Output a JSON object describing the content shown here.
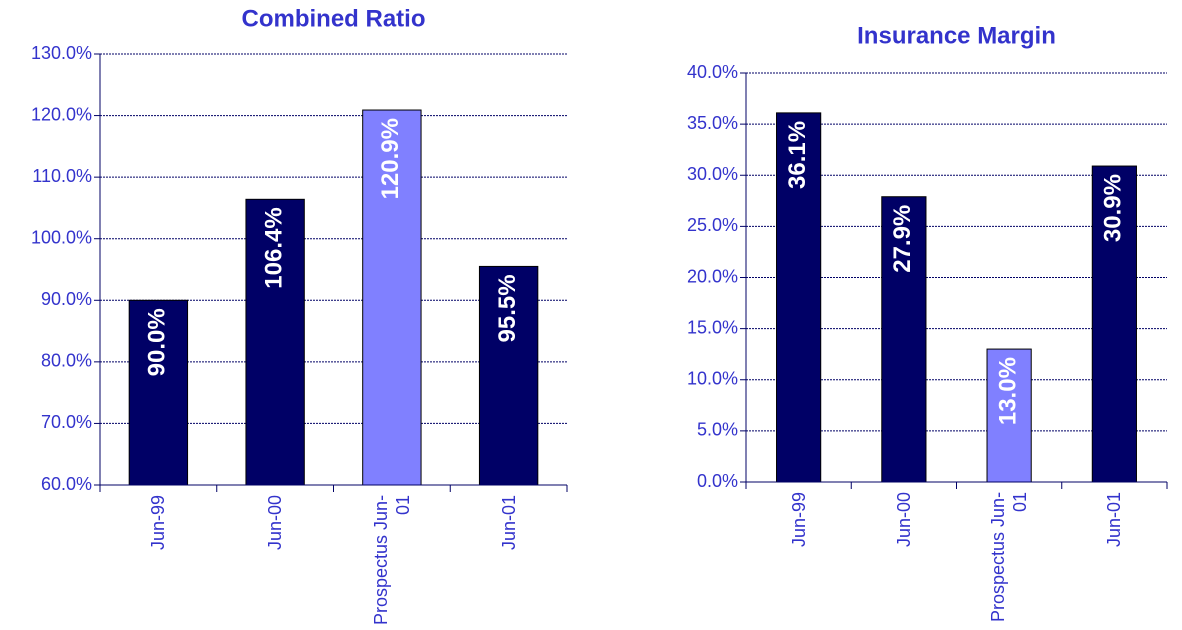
{
  "chart_data": [
    {
      "type": "bar",
      "title": "Combined Ratio",
      "categories": [
        "Jun-99",
        "Jun-00",
        "Prospectus Jun-01",
        "Jun-01"
      ],
      "values": [
        90.0,
        106.4,
        120.9,
        95.5
      ],
      "value_labels": [
        "90.0%",
        "106.4%",
        "120.9%",
        "95.5%"
      ],
      "colors": [
        "#000066",
        "#000066",
        "#8080ff",
        "#000066"
      ],
      "ylim": [
        60,
        130
      ],
      "yticks": [
        {
          "value": 60,
          "label": "60.0%"
        },
        {
          "value": 70,
          "label": "70.0%"
        },
        {
          "value": 80,
          "label": "80.0%"
        },
        {
          "value": 90,
          "label": "90.0%"
        },
        {
          "value": 100,
          "label": "100.0%"
        },
        {
          "value": 110,
          "label": "110.0%"
        },
        {
          "value": 120,
          "label": "120.0%"
        },
        {
          "value": 130,
          "label": "130.0%"
        }
      ],
      "grid": true
    },
    {
      "type": "bar",
      "title": "Insurance Margin",
      "categories": [
        "Jun-99",
        "Jun-00",
        "Prospectus Jun-01",
        "Jun-01"
      ],
      "values": [
        36.1,
        27.9,
        13.0,
        30.9
      ],
      "value_labels": [
        "36.1%",
        "27.9%",
        "13.0%",
        "30.9%"
      ],
      "colors": [
        "#000066",
        "#000066",
        "#8080ff",
        "#000066"
      ],
      "ylim": [
        0,
        40
      ],
      "yticks": [
        {
          "value": 0,
          "label": "0.0%"
        },
        {
          "value": 5,
          "label": "5.0%"
        },
        {
          "value": 10,
          "label": "10.0%"
        },
        {
          "value": 15,
          "label": "15.0%"
        },
        {
          "value": 20,
          "label": "20.0%"
        },
        {
          "value": 25,
          "label": "25.0%"
        },
        {
          "value": 30,
          "label": "30.0%"
        },
        {
          "value": 35,
          "label": "35.0%"
        },
        {
          "value": 40,
          "label": "40.0%"
        }
      ],
      "grid": true
    }
  ]
}
